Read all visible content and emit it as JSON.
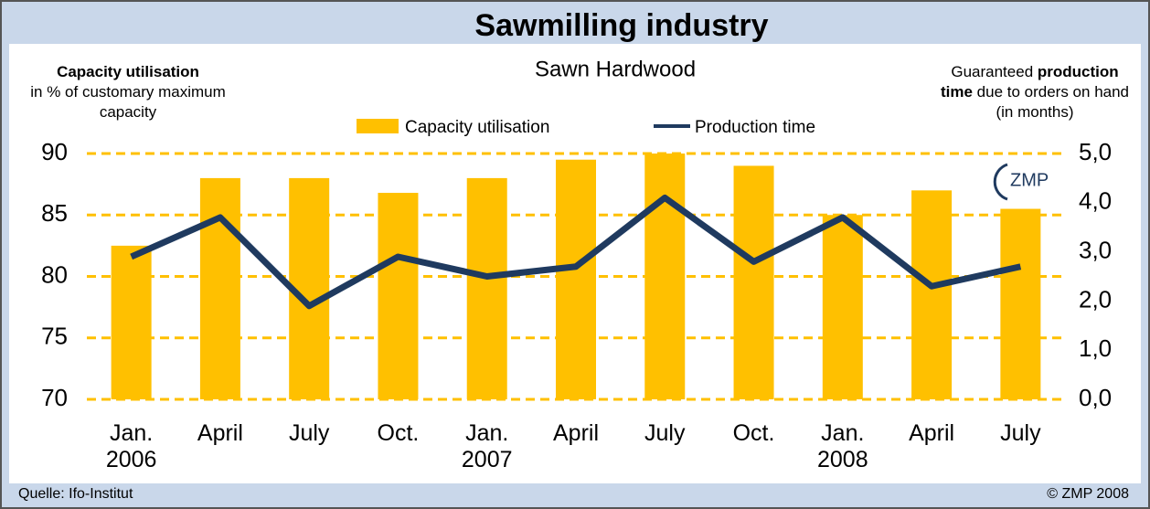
{
  "chart_data": {
    "type": "bar",
    "title": "Sawmilling industry",
    "subtitle": "Sawn Hardwood",
    "y_label": {
      "bold": "Capacity utilisation",
      "text": "in % of customary maximum capacity"
    },
    "y2_label": [
      "Guaranteed ",
      "production time",
      " due to orders on hand (in months)"
    ],
    "categories": [
      "Jan.\n2006",
      "April",
      "July",
      "Oct.",
      "Jan.\n2007",
      "April",
      "July",
      "Oct.",
      "Jan.\n2008",
      "April",
      "July"
    ],
    "series": [
      {
        "name": "Capacity utilisation",
        "type": "bar",
        "color": "#ffc000",
        "values": [
          82.5,
          88,
          88,
          86.8,
          88,
          89.5,
          90,
          89,
          85,
          87,
          85.5
        ]
      },
      {
        "name": "Production time",
        "type": "line",
        "axis": "y2",
        "color": "#1f3a5f",
        "values": [
          2.9,
          3.7,
          1.9,
          2.9,
          2.5,
          2.7,
          4.1,
          2.8,
          3.7,
          2.3,
          2.7
        ]
      }
    ],
    "ylim": [
      70,
      90
    ],
    "yticks": [
      70,
      75,
      80,
      85,
      90
    ],
    "y2lim": [
      0,
      5
    ],
    "y2ticks": [
      {
        "value": 0,
        "label": "0,0"
      },
      {
        "value": 1,
        "label": "1,0"
      },
      {
        "value": 2,
        "label": "2,0"
      },
      {
        "value": 3,
        "label": "3,0"
      },
      {
        "value": 4,
        "label": "4,0"
      },
      {
        "value": 5,
        "label": "5,0"
      }
    ],
    "grid": true,
    "legend": "top",
    "logo": "ZMP",
    "source": "Quelle: Ifo-Institut",
    "copyright": "© ZMP 2008"
  }
}
